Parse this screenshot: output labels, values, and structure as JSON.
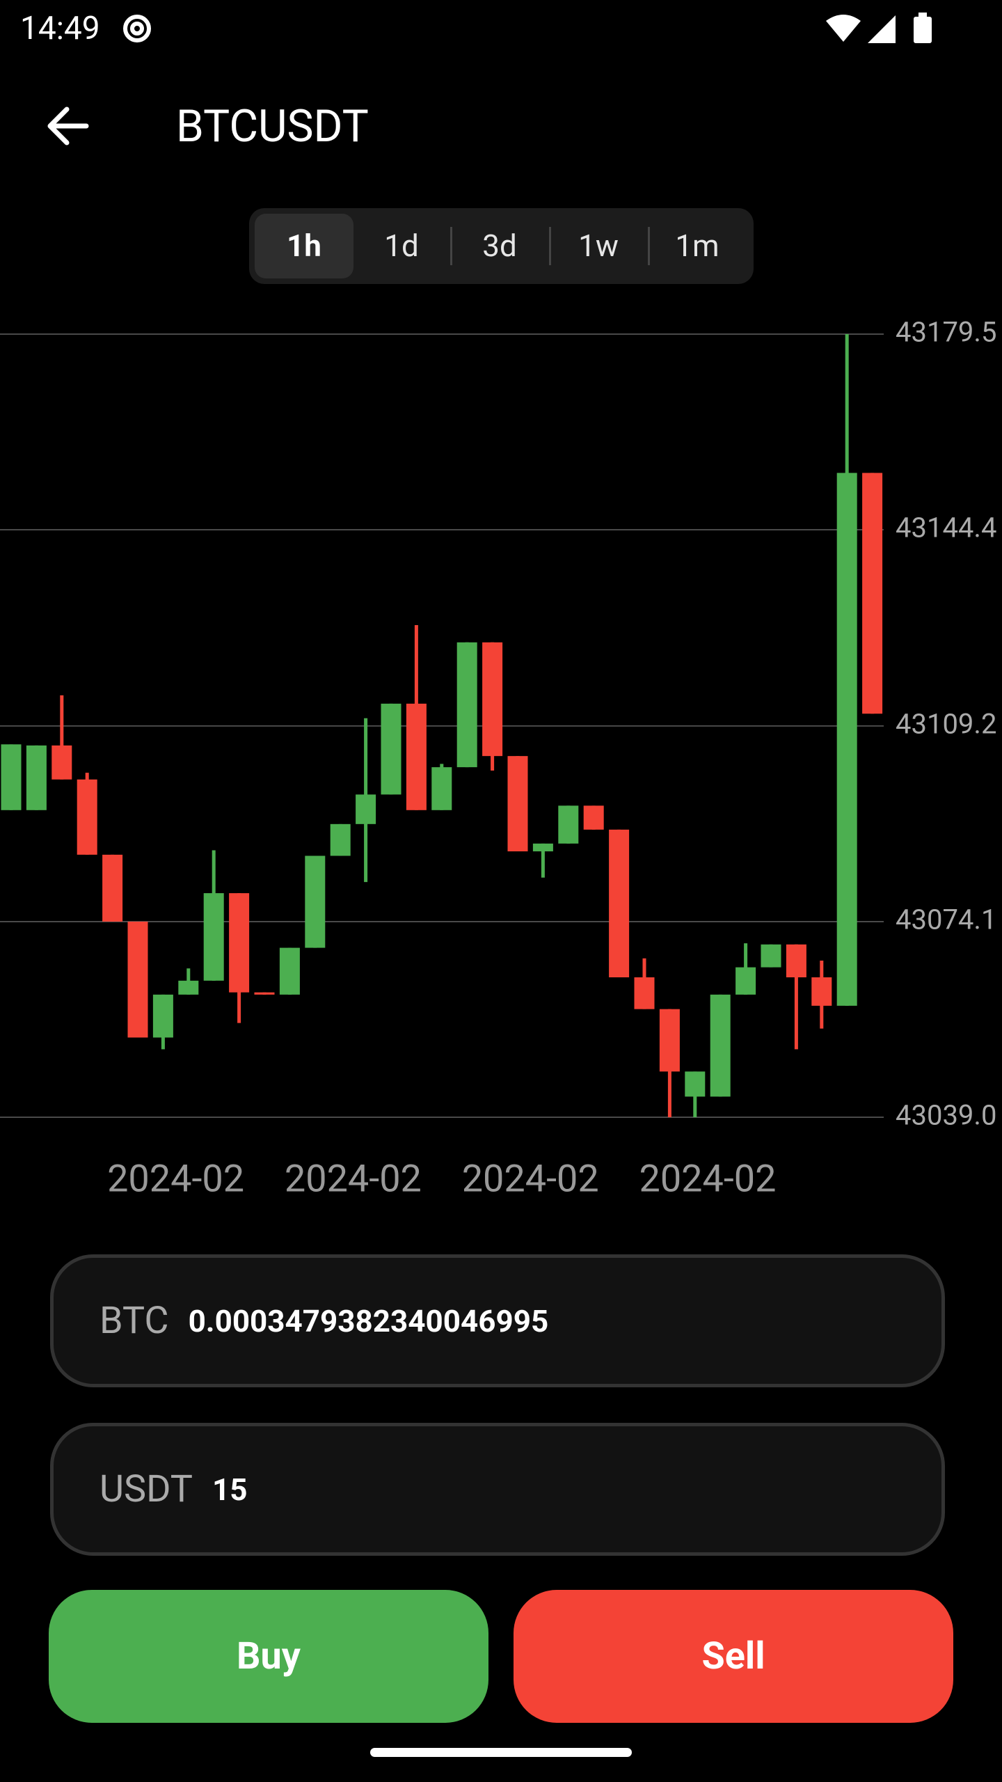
{
  "status_bar": {
    "time": "14:49"
  },
  "header": {
    "title": "BTCUSDT"
  },
  "tabs": {
    "items": [
      "1h",
      "1d",
      "3d",
      "1w",
      "1m"
    ],
    "selected_index": 0
  },
  "chart_data": {
    "type": "candlestick",
    "categories": [
      null,
      null,
      null,
      null,
      null,
      null,
      "2024-02",
      null,
      null,
      null,
      null,
      null,
      null,
      "2024-02",
      null,
      null,
      null,
      null,
      null,
      null,
      "2024-02",
      null,
      null,
      null,
      null,
      null,
      null,
      "2024-02",
      null,
      null,
      null,
      null,
      null,
      null,
      null
    ],
    "open": [
      43094.1,
      43094.1,
      43105.7,
      43099.6,
      43086.1,
      43074.1,
      43053.3,
      43061.0,
      43063.5,
      43079.2,
      43061.4,
      43061.0,
      43069.4,
      43085.9,
      43091.6,
      43096.9,
      43113.2,
      43094.1,
      43101.8,
      43124.2,
      43103.8,
      43086.7,
      43088.1,
      43094.9,
      43090.6,
      43064.1,
      43058.4,
      43042.7,
      43042.7,
      43061.0,
      43065.9,
      43070.0,
      43064.1,
      43059.0,
      43154.6
    ],
    "high": [
      43105.9,
      43105.7,
      43114.7,
      43100.8,
      43086.1,
      43074.1,
      43061.0,
      43065.7,
      43086.9,
      43079.2,
      43061.4,
      43069.4,
      43085.9,
      43091.6,
      43110.6,
      43113.2,
      43127.3,
      43102.4,
      43124.2,
      43124.2,
      43103.8,
      43088.1,
      43094.9,
      43094.9,
      43090.6,
      43067.5,
      43058.4,
      43047.2,
      43061.0,
      43070.2,
      43070.0,
      43070.0,
      43067.1,
      43179.5,
      43154.6
    ],
    "low": [
      43094.1,
      43094.1,
      43099.6,
      43086.1,
      43074.1,
      43053.3,
      43051.2,
      43061.0,
      43063.5,
      43055.9,
      43061.0,
      43061.0,
      43069.4,
      43085.9,
      43081.2,
      43096.9,
      43094.1,
      43094.1,
      43101.8,
      43101.2,
      43086.7,
      43082.0,
      43088.1,
      43090.6,
      43064.1,
      43058.4,
      43039.0,
      43039.0,
      43042.7,
      43061.0,
      43065.9,
      43051.2,
      43054.9,
      43059.0,
      43111.4
    ],
    "close": [
      43105.9,
      43105.7,
      43099.6,
      43086.1,
      43074.1,
      43053.3,
      43061.0,
      43063.5,
      43079.2,
      43061.4,
      43061.0,
      43069.4,
      43085.9,
      43091.6,
      43096.9,
      43113.2,
      43094.1,
      43101.8,
      43124.2,
      43103.8,
      43086.7,
      43088.1,
      43094.9,
      43090.6,
      43064.1,
      43058.4,
      43047.2,
      43047.2,
      43061.0,
      43065.9,
      43070.0,
      43064.1,
      43059.0,
      43154.6,
      43111.4
    ],
    "up_color": "#4caf50",
    "down_color": "#f44336",
    "ylim": [
      43039.0,
      43179.5
    ],
    "yticks": [
      {
        "value": 43039,
        "label": "43039.0"
      },
      43074.1,
      43109.2,
      43144.4,
      43179.5
    ],
    "grid": true
  },
  "inputs": [
    {
      "label": "BTC",
      "value": "0.0003479382340046995"
    },
    {
      "label": "USDT",
      "value": "15"
    }
  ],
  "buttons": {
    "buy": "Buy",
    "sell": "Sell"
  }
}
